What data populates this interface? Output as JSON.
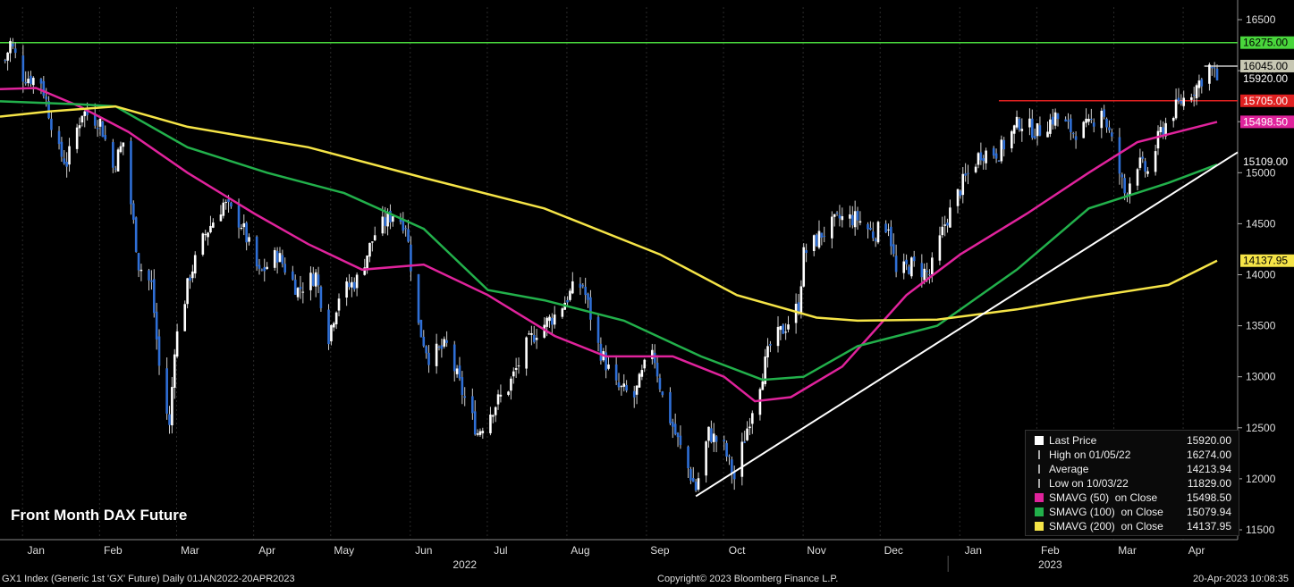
{
  "chart_data": {
    "type": "candlestick",
    "title": "Front Month DAX Future",
    "ylim": [
      11500,
      16500
    ],
    "y_ticks": [
      11500,
      12000,
      12500,
      13000,
      13500,
      14000,
      14500,
      15000,
      15500,
      16000,
      16500
    ],
    "x_range": [
      "2022-01-01",
      "2023-04-20"
    ],
    "month_ticks": [
      {
        "label": "Jan",
        "date": "2022-01-15"
      },
      {
        "label": "Feb",
        "date": "2022-02-14"
      },
      {
        "label": "Mar",
        "date": "2022-03-16"
      },
      {
        "label": "Apr",
        "date": "2022-04-15"
      },
      {
        "label": "May",
        "date": "2022-05-15"
      },
      {
        "label": "Jun",
        "date": "2022-06-15"
      },
      {
        "label": "Jul",
        "date": "2022-07-15"
      },
      {
        "label": "Aug",
        "date": "2022-08-15"
      },
      {
        "label": "Sep",
        "date": "2022-09-15"
      },
      {
        "label": "Oct",
        "date": "2022-10-15"
      },
      {
        "label": "Nov",
        "date": "2022-11-15"
      },
      {
        "label": "Dec",
        "date": "2022-12-15"
      },
      {
        "label": "Jan",
        "date": "2023-01-15"
      },
      {
        "label": "Feb",
        "date": "2023-02-14"
      },
      {
        "label": "Mar",
        "date": "2023-03-16"
      },
      {
        "label": "Apr",
        "date": "2023-04-12"
      }
    ],
    "year_labels": [
      {
        "label": "2022",
        "date": "2022-07-01"
      },
      {
        "label": "2023",
        "date": "2023-02-14"
      }
    ],
    "price_path": [
      [
        "2022-01-03",
        16100
      ],
      [
        "2022-01-05",
        16274
      ],
      [
        "2022-01-10",
        15950
      ],
      [
        "2022-01-17",
        15900
      ],
      [
        "2022-01-24",
        15200
      ],
      [
        "2022-01-27",
        15100
      ],
      [
        "2022-02-02",
        15600
      ],
      [
        "2022-02-09",
        15500
      ],
      [
        "2022-02-14",
        15050
      ],
      [
        "2022-02-18",
        15300
      ],
      [
        "2022-02-24",
        14100
      ],
      [
        "2022-03-01",
        13900
      ],
      [
        "2022-03-04",
        13100
      ],
      [
        "2022-03-08",
        12500
      ],
      [
        "2022-03-10",
        13300
      ],
      [
        "2022-03-16",
        14000
      ],
      [
        "2022-03-22",
        14400
      ],
      [
        "2022-03-29",
        14700
      ],
      [
        "2022-04-05",
        14500
      ],
      [
        "2022-04-12",
        14000
      ],
      [
        "2022-04-19",
        14200
      ],
      [
        "2022-04-27",
        13850
      ],
      [
        "2022-05-04",
        14000
      ],
      [
        "2022-05-09",
        13400
      ],
      [
        "2022-05-13",
        13800
      ],
      [
        "2022-05-20",
        13950
      ],
      [
        "2022-05-27",
        14400
      ],
      [
        "2022-06-03",
        14600
      ],
      [
        "2022-06-08",
        14500
      ],
      [
        "2022-06-13",
        13500
      ],
      [
        "2022-06-17",
        13200
      ],
      [
        "2022-06-24",
        13300
      ],
      [
        "2022-06-30",
        12850
      ],
      [
        "2022-07-06",
        12450
      ],
      [
        "2022-07-12",
        12700
      ],
      [
        "2022-07-18",
        12900
      ],
      [
        "2022-07-25",
        13300
      ],
      [
        "2022-07-29",
        13450
      ],
      [
        "2022-08-05",
        13600
      ],
      [
        "2022-08-12",
        13850
      ],
      [
        "2022-08-16",
        13900
      ],
      [
        "2022-08-22",
        13300
      ],
      [
        "2022-08-29",
        12900
      ],
      [
        "2022-09-05",
        12800
      ],
      [
        "2022-09-12",
        13300
      ],
      [
        "2022-09-16",
        12800
      ],
      [
        "2022-09-23",
        12300
      ],
      [
        "2022-09-29",
        11900
      ],
      [
        "2022-10-04",
        12450
      ],
      [
        "2022-10-10",
        12300
      ],
      [
        "2022-10-14",
        12000
      ],
      [
        "2022-10-21",
        12700
      ],
      [
        "2022-10-28",
        13300
      ],
      [
        "2022-11-03",
        13500
      ],
      [
        "2022-11-08",
        13700
      ],
      [
        "2022-11-10",
        14200
      ],
      [
        "2022-11-17",
        14400
      ],
      [
        "2022-11-24",
        14550
      ],
      [
        "2022-12-01",
        14550
      ],
      [
        "2022-12-07",
        14400
      ],
      [
        "2022-12-13",
        14500
      ],
      [
        "2022-12-16",
        14000
      ],
      [
        "2022-12-22",
        14100
      ],
      [
        "2022-12-29",
        14000
      ],
      [
        "2023-01-04",
        14500
      ],
      [
        "2023-01-11",
        14900
      ],
      [
        "2023-01-18",
        15200
      ],
      [
        "2023-01-25",
        15200
      ],
      [
        "2023-02-02",
        15500
      ],
      [
        "2023-02-09",
        15400
      ],
      [
        "2023-02-16",
        15550
      ],
      [
        "2023-02-23",
        15400
      ],
      [
        "2023-03-01",
        15450
      ],
      [
        "2023-03-06",
        15650
      ],
      [
        "2023-03-10",
        15300
      ],
      [
        "2023-03-15",
        14800
      ],
      [
        "2023-03-20",
        15100
      ],
      [
        "2023-03-24",
        15000
      ],
      [
        "2023-03-29",
        15400
      ],
      [
        "2023-04-03",
        15600
      ],
      [
        "2023-04-06",
        15700
      ],
      [
        "2023-04-12",
        15850
      ],
      [
        "2023-04-17",
        16040
      ],
      [
        "2023-04-20",
        15920
      ]
    ],
    "overlays": [
      {
        "name": "SMAVG (50) on Close",
        "color": "#e0239c",
        "points": [
          [
            "2022-01-01",
            15820
          ],
          [
            "2022-01-15",
            15830
          ],
          [
            "2022-02-01",
            15650
          ],
          [
            "2022-02-20",
            15400
          ],
          [
            "2022-03-15",
            15000
          ],
          [
            "2022-04-10",
            14600
          ],
          [
            "2022-05-01",
            14300
          ],
          [
            "2022-05-22",
            14050
          ],
          [
            "2022-06-15",
            14100
          ],
          [
            "2022-07-10",
            13800
          ],
          [
            "2022-08-05",
            13400
          ],
          [
            "2022-08-25",
            13200
          ],
          [
            "2022-09-20",
            13200
          ],
          [
            "2022-10-10",
            13000
          ],
          [
            "2022-10-22",
            12760
          ],
          [
            "2022-11-05",
            12800
          ],
          [
            "2022-11-25",
            13100
          ],
          [
            "2022-12-20",
            13800
          ],
          [
            "2023-01-10",
            14200
          ],
          [
            "2023-02-05",
            14600
          ],
          [
            "2023-03-01",
            15000
          ],
          [
            "2023-03-20",
            15300
          ],
          [
            "2023-04-20",
            15498.5
          ]
        ]
      },
      {
        "name": "SMAVG (100) on Close",
        "color": "#22b04b",
        "points": [
          [
            "2022-01-01",
            15700
          ],
          [
            "2022-02-01",
            15670
          ],
          [
            "2022-02-15",
            15650
          ],
          [
            "2022-03-15",
            15250
          ],
          [
            "2022-04-15",
            15000
          ],
          [
            "2022-05-15",
            14800
          ],
          [
            "2022-06-15",
            14450
          ],
          [
            "2022-07-10",
            13850
          ],
          [
            "2022-08-01",
            13750
          ],
          [
            "2022-09-01",
            13550
          ],
          [
            "2022-10-01",
            13200
          ],
          [
            "2022-10-25",
            12970
          ],
          [
            "2022-11-10",
            13000
          ],
          [
            "2022-12-01",
            13300
          ],
          [
            "2023-01-01",
            13500
          ],
          [
            "2023-02-01",
            14050
          ],
          [
            "2023-03-01",
            14650
          ],
          [
            "2023-04-01",
            14900
          ],
          [
            "2023-04-20",
            15079.94
          ]
        ]
      },
      {
        "name": "SMAVG (200) on Close",
        "color": "#f5e447",
        "points": [
          [
            "2022-01-01",
            15550
          ],
          [
            "2022-01-20",
            15600
          ],
          [
            "2022-02-15",
            15650
          ],
          [
            "2022-03-15",
            15450
          ],
          [
            "2022-05-01",
            15250
          ],
          [
            "2022-06-15",
            14950
          ],
          [
            "2022-08-01",
            14650
          ],
          [
            "2022-09-15",
            14200
          ],
          [
            "2022-10-15",
            13800
          ],
          [
            "2022-11-15",
            13580
          ],
          [
            "2022-12-01",
            13550
          ],
          [
            "2023-01-01",
            13560
          ],
          [
            "2023-02-01",
            13660
          ],
          [
            "2023-03-01",
            13780
          ],
          [
            "2023-04-01",
            13900
          ],
          [
            "2023-04-20",
            14137.95
          ]
        ]
      }
    ],
    "trend_line": {
      "color": "#ffffff",
      "from": [
        "2022-09-29",
        11829
      ],
      "to": [
        "2023-04-28",
        15200
      ]
    },
    "horizontal_lines": [
      {
        "color": "#49d63c",
        "value": 16275,
        "from": "2022-01-01",
        "to": "2023-04-28"
      },
      {
        "color": "#e02020",
        "value": 15705,
        "from": "2023-01-25",
        "to": "2023-04-28"
      },
      {
        "color": "#cccccc",
        "value": 16045,
        "from": "2023-04-15",
        "to": "2023-04-28"
      }
    ],
    "price_tags": [
      {
        "text": "16275.00",
        "value": 16275,
        "bg": "#49d63c",
        "fg": "#000"
      },
      {
        "text": "16045.00",
        "value": 16045,
        "bg": "#c8c8b4",
        "fg": "#000"
      },
      {
        "text": "15920.00",
        "value": 15920,
        "bg": "#000000",
        "fg": "#fff"
      },
      {
        "text": "15705.00",
        "value": 15705,
        "bg": "#e02020",
        "fg": "#fff"
      },
      {
        "text": "15498.50",
        "value": 15498.5,
        "bg": "#e0239c",
        "fg": "#fff"
      },
      {
        "text": "15109.00",
        "value": 15109,
        "bg": "#000000",
        "fg": "#fff"
      },
      {
        "text": "14137.95",
        "value": 14137.95,
        "bg": "#f5e447",
        "fg": "#000"
      }
    ]
  },
  "legend": [
    {
      "label": "Last Price",
      "value": "15920.00",
      "color": "#ffffff",
      "kind": "box"
    },
    {
      "label": "High on 01/05/22",
      "value": "16274.00",
      "color": "#aaaaaa",
      "kind": "mark"
    },
    {
      "label": "Average",
      "value": "14213.94",
      "color": "#aaaaaa",
      "kind": "mark"
    },
    {
      "label": "Low on 10/03/22",
      "value": "11829.00",
      "color": "#aaaaaa",
      "kind": "mark"
    },
    {
      "label": "SMAVG (50)  on Close",
      "value": "15498.50",
      "color": "#e0239c",
      "kind": "box"
    },
    {
      "label": "SMAVG (100)  on Close",
      "value": "15079.94",
      "color": "#22b04b",
      "kind": "box"
    },
    {
      "label": "SMAVG (200)  on Close",
      "value": "14137.95",
      "color": "#f5e447",
      "kind": "box"
    }
  ],
  "footer": {
    "left": "GX1 Index (Generic 1st 'GX' Future)  Daily 01JAN2022-20APR2023",
    "center": "Copyright© 2023 Bloomberg Finance L.P.",
    "right": "20-Apr-2023 10:08:35"
  }
}
